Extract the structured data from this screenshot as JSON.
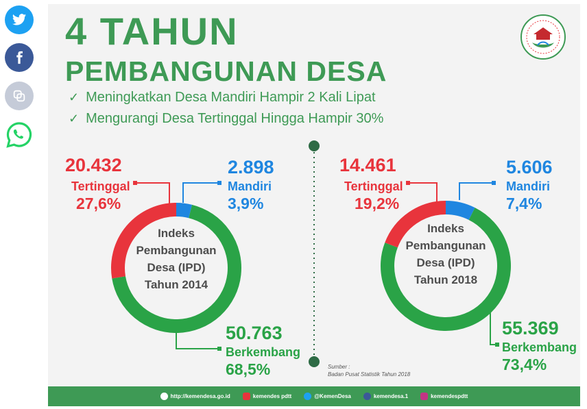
{
  "share_buttons": [
    {
      "name": "twitter-icon",
      "color": "#1da1f2"
    },
    {
      "name": "facebook-icon",
      "color": "#3b5998"
    },
    {
      "name": "copy-icon",
      "color": "#c5cbd8"
    },
    {
      "name": "whatsapp-icon",
      "color": "#25d366"
    }
  ],
  "infographic": {
    "title_line1": "4 TAHUN",
    "title_line2": "PEMBANGUNAN DESA",
    "bullets": [
      "Meningkatkan Desa Mandiri Hampir 2 Kali Lipat",
      "Mengurangi Desa Tertinggal Hingga Hampir 30%"
    ],
    "source_line1": "Sumber :",
    "source_line2": "Badan Pusat Statistik Tahun 2018",
    "colors": {
      "tertinggal": "#e8343c",
      "mandiri": "#1f86e0",
      "berkembang": "#2aa347",
      "brand": "#3e9a55"
    }
  },
  "chart_data": [
    {
      "type": "pie",
      "center_label": [
        "Indeks",
        "Pembangunan",
        "Desa (IPD)",
        "Tahun 2014"
      ],
      "slices": [
        {
          "label": "Tertinggal",
          "count_text": "20.432",
          "percent_text": "27,6%",
          "value": 27.6
        },
        {
          "label": "Mandiri",
          "count_text": "2.898",
          "percent_text": "3,9%",
          "value": 3.9
        },
        {
          "label": "Berkembang",
          "count_text": "50.763",
          "percent_text": "68,5%",
          "value": 68.5
        }
      ]
    },
    {
      "type": "pie",
      "center_label": [
        "Indeks",
        "Pembangunan",
        "Desa (IPD)",
        "Tahun 2018"
      ],
      "slices": [
        {
          "label": "Tertinggal",
          "count_text": "14.461",
          "percent_text": "19,2%",
          "value": 19.2
        },
        {
          "label": "Mandiri",
          "count_text": "5.606",
          "percent_text": "7,4%",
          "value": 7.4
        },
        {
          "label": "Berkembang",
          "count_text": "55.369",
          "percent_text": "73,4%",
          "value": 73.4
        }
      ]
    }
  ],
  "footer": {
    "items": [
      {
        "icon": "globe-icon",
        "label": "http://kemendesa.go.id"
      },
      {
        "icon": "youtube-icon",
        "label": "kemendes pdtt"
      },
      {
        "icon": "twitter-icon",
        "label": "@KemenDesa"
      },
      {
        "icon": "facebook-icon",
        "label": "kemendesa.1"
      },
      {
        "icon": "instagram-icon",
        "label": "kemendespdtt"
      }
    ]
  }
}
